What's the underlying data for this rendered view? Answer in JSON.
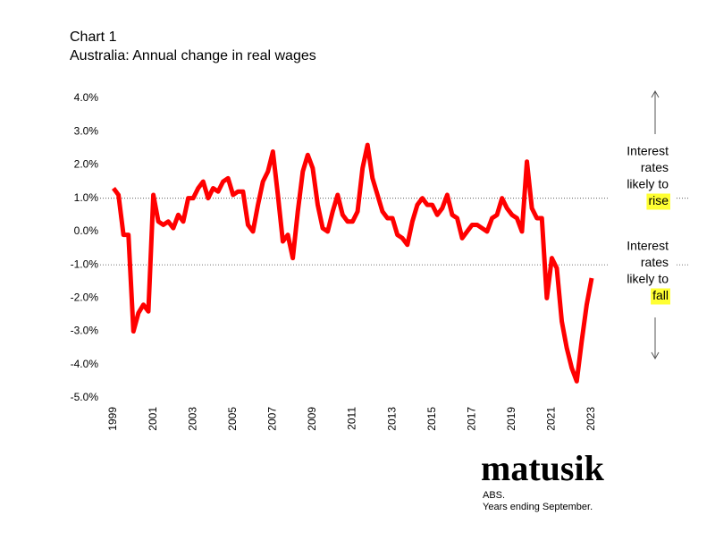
{
  "chart_data": {
    "type": "line",
    "title": "Chart 1",
    "subtitle": "Australia: Annual change in real wages",
    "x": [
      1999,
      1999.25,
      1999.5,
      1999.75,
      2000,
      2000.25,
      2000.5,
      2000.75,
      2001,
      2001.25,
      2001.5,
      2001.75,
      2002,
      2002.25,
      2002.5,
      2002.75,
      2003,
      2003.25,
      2003.5,
      2003.75,
      2004,
      2004.25,
      2004.5,
      2004.75,
      2005,
      2005.25,
      2005.5,
      2005.75,
      2006,
      2006.25,
      2006.5,
      2006.75,
      2007,
      2007.25,
      2007.5,
      2007.75,
      2008,
      2008.25,
      2008.5,
      2008.75,
      2009,
      2009.25,
      2009.5,
      2009.75,
      2010,
      2010.25,
      2010.5,
      2010.75,
      2011,
      2011.25,
      2011.5,
      2011.75,
      2012,
      2012.25,
      2012.5,
      2012.75,
      2013,
      2013.25,
      2013.5,
      2013.75,
      2014,
      2014.25,
      2014.5,
      2014.75,
      2015,
      2015.25,
      2015.5,
      2015.75,
      2016,
      2016.25,
      2016.5,
      2016.75,
      2017,
      2017.25,
      2017.5,
      2017.75,
      2018,
      2018.25,
      2018.5,
      2018.75,
      2019,
      2019.25,
      2019.5,
      2019.75,
      2020,
      2020.25,
      2020.5,
      2020.75,
      2021,
      2021.25,
      2021.5,
      2021.75,
      2022,
      2022.25,
      2022.5,
      2022.75,
      2023
    ],
    "series": [
      {
        "color": "#ff0000",
        "values": [
          1.3,
          1.1,
          -0.1,
          -0.1,
          -3.0,
          -2.45,
          -2.2,
          -2.4,
          1.1,
          0.3,
          0.2,
          0.3,
          0.1,
          0.5,
          0.3,
          1.0,
          1.0,
          1.3,
          1.5,
          1.0,
          1.3,
          1.2,
          1.5,
          1.6,
          1.1,
          1.2,
          1.2,
          0.2,
          0.0,
          0.8,
          1.5,
          1.8,
          2.4,
          1.1,
          -0.3,
          -0.1,
          -0.8,
          0.6,
          1.8,
          2.3,
          1.9,
          0.8,
          0.1,
          0.0,
          0.6,
          1.1,
          0.5,
          0.3,
          0.3,
          0.6,
          1.9,
          2.6,
          1.6,
          1.1,
          0.6,
          0.4,
          0.4,
          -0.1,
          -0.2,
          -0.4,
          0.3,
          0.8,
          1.0,
          0.8,
          0.8,
          0.5,
          0.7,
          1.1,
          0.5,
          0.4,
          -0.2,
          0.0,
          0.2,
          0.2,
          0.1,
          0.0,
          0.4,
          0.5,
          1.0,
          0.7,
          0.5,
          0.4,
          0.0,
          2.1,
          0.7,
          0.4,
          0.4,
          -2.0,
          -0.8,
          -1.1,
          -2.7,
          -3.5,
          -4.1,
          -4.5,
          -3.3,
          -2.2,
          -1.4
        ]
      }
    ],
    "xlim": [
      1999,
      2023
    ],
    "xticks": [
      1999,
      2001,
      2003,
      2005,
      2007,
      2009,
      2011,
      2013,
      2015,
      2017,
      2019,
      2021,
      2023
    ],
    "ylim": [
      -5,
      4
    ],
    "yticks": [
      {
        "value": 4,
        "label": "4.0%"
      },
      {
        "value": 3,
        "label": "3.0%"
      },
      {
        "value": 2,
        "label": "2.0%"
      },
      {
        "value": 1,
        "label": "1.0%"
      },
      {
        "value": 0,
        "label": "0.0%"
      },
      {
        "value": -1,
        "label": "-1.0%"
      },
      {
        "value": -2,
        "label": "-2.0%"
      },
      {
        "value": -3,
        "label": "-3.0%"
      },
      {
        "value": -4,
        "label": "-4.0%"
      },
      {
        "value": -5,
        "label": "-5.0%"
      }
    ],
    "reference_lines": [
      1,
      -1
    ],
    "annotations": [
      {
        "lines": [
          "Interest",
          "rates",
          "likely to"
        ],
        "highlight": "rise"
      },
      {
        "lines": [
          "Interest",
          "rates",
          "likely to"
        ],
        "highlight": "fall"
      }
    ],
    "brand": "matusik",
    "source": "ABS.",
    "note": "Years ending September."
  }
}
